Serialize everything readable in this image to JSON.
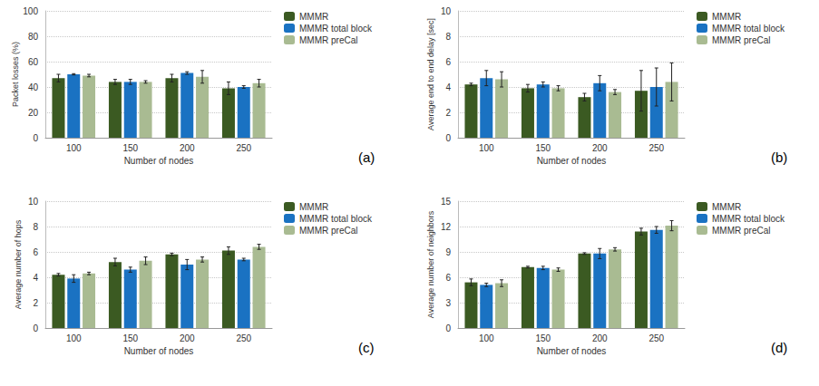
{
  "chart_data": [
    {
      "type": "bar",
      "annotation": "(a)",
      "xlabel": "Number of nodes",
      "ylabel": "Packet losses (%)",
      "categories": [
        "100",
        "150",
        "200",
        "250"
      ],
      "ylim": [
        0,
        100
      ],
      "yticks": [
        0,
        20,
        40,
        60,
        80,
        100
      ],
      "grid": true,
      "legend": "right",
      "series": [
        {
          "name": "MMMR",
          "color": "#3b5a22",
          "values": [
            47,
            44,
            47,
            39
          ],
          "errors": [
            3,
            2,
            3,
            5
          ]
        },
        {
          "name": "MMMR total block",
          "color": "#1a72c2",
          "values": [
            50,
            44,
            51,
            40
          ],
          "errors": [
            0.5,
            2,
            1,
            1
          ]
        },
        {
          "name": "MMMR preCal",
          "color": "#a9bb92",
          "values": [
            49,
            44,
            48,
            43
          ],
          "errors": [
            1,
            1,
            5,
            3
          ]
        }
      ]
    },
    {
      "type": "bar",
      "annotation": "(b)",
      "xlabel": "Number of nodes",
      "ylabel": "Average end to end delay [sec]",
      "categories": [
        "100",
        "150",
        "200",
        "250"
      ],
      "ylim": [
        0,
        10
      ],
      "yticks": [
        0,
        2,
        4,
        6,
        8,
        10
      ],
      "grid": true,
      "legend": "right",
      "series": [
        {
          "name": "MMMR",
          "color": "#3b5a22",
          "values": [
            4.2,
            3.9,
            3.2,
            3.7
          ],
          "errors": [
            0.1,
            0.3,
            0.3,
            1.6
          ]
        },
        {
          "name": "MMMR total block",
          "color": "#1a72c2",
          "values": [
            4.7,
            4.2,
            4.3,
            4.0
          ],
          "errors": [
            0.6,
            0.2,
            0.6,
            1.5
          ]
        },
        {
          "name": "MMMR preCal",
          "color": "#a9bb92",
          "values": [
            4.6,
            3.9,
            3.6,
            4.4
          ],
          "errors": [
            0.6,
            0.2,
            0.2,
            1.5
          ]
        }
      ]
    },
    {
      "type": "bar",
      "annotation": "(c)",
      "xlabel": "Number of nodes",
      "ylabel": "Average number of hops",
      "categories": [
        "100",
        "150",
        "200",
        "250"
      ],
      "ylim": [
        0,
        10
      ],
      "yticks": [
        0,
        2,
        4,
        6,
        8,
        10
      ],
      "grid": true,
      "legend": "right",
      "series": [
        {
          "name": "MMMR",
          "color": "#3b5a22",
          "values": [
            4.2,
            5.2,
            5.8,
            6.1
          ],
          "errors": [
            0.1,
            0.3,
            0.1,
            0.3
          ]
        },
        {
          "name": "MMMR total block",
          "color": "#1a72c2",
          "values": [
            3.9,
            4.6,
            5.0,
            5.4
          ],
          "errors": [
            0.3,
            0.2,
            0.4,
            0.1
          ]
        },
        {
          "name": "MMMR preCal",
          "color": "#a9bb92",
          "values": [
            4.3,
            5.3,
            5.4,
            6.4
          ],
          "errors": [
            0.1,
            0.3,
            0.2,
            0.2
          ]
        }
      ]
    },
    {
      "type": "bar",
      "annotation": "(d)",
      "xlabel": "Number of nodes",
      "ylabel": "Average number of neighbors",
      "categories": [
        "100",
        "150",
        "200",
        "250"
      ],
      "ylim": [
        0,
        15
      ],
      "yticks": [
        0,
        3,
        6,
        9,
        12,
        15
      ],
      "grid": true,
      "legend": "right",
      "series": [
        {
          "name": "MMMR",
          "color": "#3b5a22",
          "values": [
            5.4,
            7.2,
            8.8,
            11.4
          ],
          "errors": [
            0.4,
            0.1,
            0.1,
            0.4
          ]
        },
        {
          "name": "MMMR total block",
          "color": "#1a72c2",
          "values": [
            5.1,
            7.1,
            8.8,
            11.6
          ],
          "errors": [
            0.2,
            0.2,
            0.6,
            0.4
          ]
        },
        {
          "name": "MMMR preCal",
          "color": "#a9bb92",
          "values": [
            5.3,
            6.9,
            9.3,
            12.1
          ],
          "errors": [
            0.4,
            0.2,
            0.2,
            0.6
          ]
        }
      ]
    }
  ]
}
